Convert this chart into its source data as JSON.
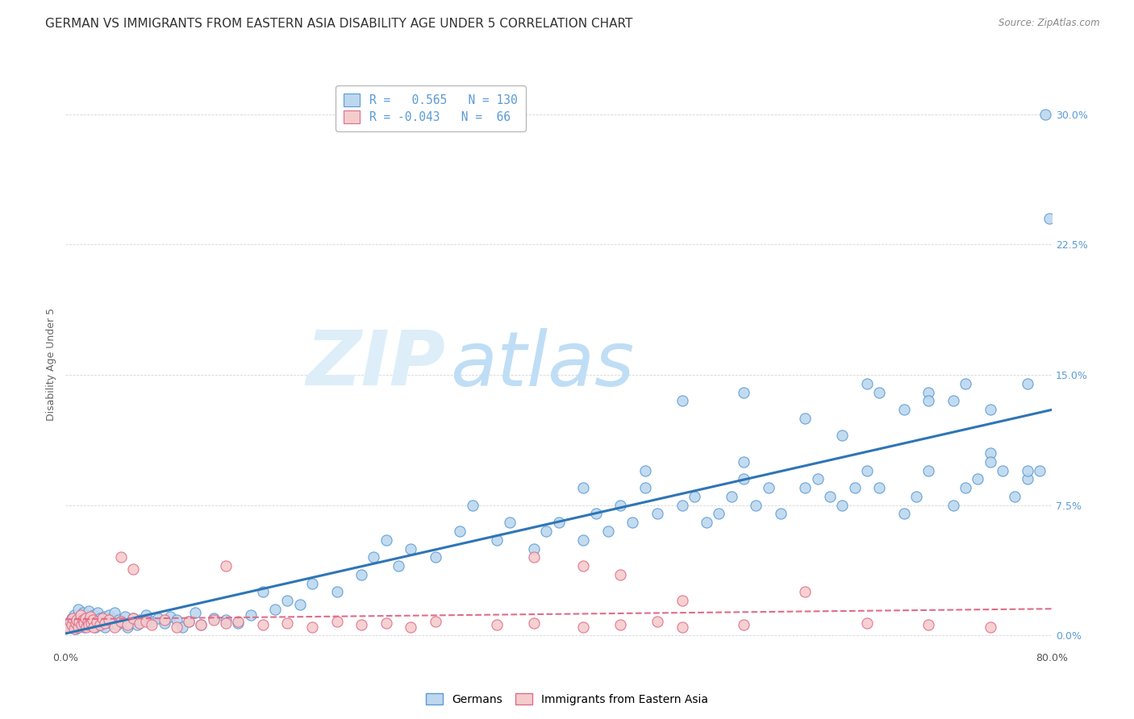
{
  "title": "GERMAN VS IMMIGRANTS FROM EASTERN ASIA DISABILITY AGE UNDER 5 CORRELATION CHART",
  "source": "Source: ZipAtlas.com",
  "ylabel": "Disability Age Under 5",
  "xmin": 0.0,
  "xmax": 80.0,
  "ymin": -0.8,
  "ymax": 32.0,
  "legend_labels": [
    "Germans",
    "Immigrants from Eastern Asia"
  ],
  "R_german": 0.565,
  "N_german": 130,
  "R_immigrants": -0.043,
  "N_immigrants": 66,
  "blue_fill": "#BDD7EE",
  "blue_edge": "#5B9BD5",
  "pink_fill": "#F4CCCC",
  "pink_edge": "#E06C8A",
  "blue_line_color": "#2E75B6",
  "pink_line_color": "#FF8FAB",
  "watermark_color": "#D6ECF8",
  "title_fontsize": 11,
  "axis_label_fontsize": 9,
  "tick_fontsize": 9,
  "blue_x": [
    0.3,
    0.5,
    0.6,
    0.7,
    0.8,
    0.9,
    1.0,
    1.1,
    1.2,
    1.3,
    1.4,
    1.5,
    1.6,
    1.7,
    1.8,
    1.9,
    2.0,
    2.1,
    2.2,
    2.3,
    2.4,
    2.5,
    2.6,
    2.7,
    2.8,
    2.9,
    3.0,
    3.1,
    3.2,
    3.4,
    3.5,
    3.7,
    3.8,
    4.0,
    4.2,
    4.3,
    4.5,
    4.8,
    5.0,
    5.2,
    5.5,
    5.8,
    6.0,
    6.5,
    7.0,
    7.5,
    8.0,
    8.5,
    9.0,
    9.5,
    10.0,
    10.5,
    11.0,
    12.0,
    13.0,
    14.0,
    15.0,
    16.0,
    17.0,
    18.0,
    19.0,
    20.0,
    22.0,
    24.0,
    25.0,
    26.0,
    27.0,
    28.0,
    30.0,
    32.0,
    33.0,
    35.0,
    36.0,
    38.0,
    39.0,
    40.0,
    42.0,
    43.0,
    44.0,
    45.0,
    46.0,
    47.0,
    48.0,
    50.0,
    51.0,
    52.0,
    53.0,
    54.0,
    55.0,
    56.0,
    57.0,
    58.0,
    60.0,
    61.0,
    62.0,
    63.0,
    64.0,
    65.0,
    66.0,
    68.0,
    69.0,
    70.0,
    72.0,
    73.0,
    74.0,
    75.0,
    76.0,
    77.0,
    78.0,
    79.0,
    50.0,
    55.0,
    60.0,
    65.0,
    68.0,
    70.0,
    72.0,
    75.0,
    78.0,
    79.5,
    79.8,
    55.0,
    63.0,
    66.0,
    70.0,
    73.0,
    75.0,
    78.0,
    42.0,
    47.0
  ],
  "blue_y": [
    0.5,
    1.0,
    0.7,
    1.2,
    0.4,
    0.8,
    1.5,
    0.6,
    1.0,
    0.9,
    1.3,
    0.5,
    0.8,
    1.1,
    0.7,
    1.4,
    0.6,
    1.0,
    0.9,
    1.2,
    0.5,
    0.8,
    1.3,
    0.7,
    1.0,
    0.6,
    0.9,
    1.1,
    0.5,
    0.8,
    1.2,
    0.7,
    1.0,
    1.3,
    0.6,
    0.9,
    0.8,
    1.1,
    0.5,
    0.7,
    1.0,
    0.6,
    0.9,
    1.2,
    0.8,
    1.0,
    0.7,
    1.1,
    0.9,
    0.5,
    0.8,
    1.3,
    0.6,
    1.0,
    0.9,
    0.7,
    1.2,
    2.5,
    1.5,
    2.0,
    1.8,
    3.0,
    2.5,
    3.5,
    4.5,
    5.5,
    4.0,
    5.0,
    4.5,
    6.0,
    7.5,
    5.5,
    6.5,
    5.0,
    6.0,
    6.5,
    5.5,
    7.0,
    6.0,
    7.5,
    6.5,
    8.5,
    7.0,
    7.5,
    8.0,
    6.5,
    7.0,
    8.0,
    9.0,
    7.5,
    8.5,
    7.0,
    8.5,
    9.0,
    8.0,
    7.5,
    8.5,
    9.5,
    8.5,
    7.0,
    8.0,
    9.5,
    7.5,
    8.5,
    9.0,
    10.5,
    9.5,
    8.0,
    9.0,
    9.5,
    13.5,
    14.0,
    12.5,
    14.5,
    13.0,
    14.0,
    13.5,
    10.0,
    9.5,
    30.0,
    24.0,
    10.0,
    11.5,
    14.0,
    13.5,
    14.5,
    13.0,
    14.5,
    8.5,
    9.5
  ],
  "pink_x": [
    0.2,
    0.4,
    0.5,
    0.6,
    0.7,
    0.8,
    0.9,
    1.0,
    1.1,
    1.2,
    1.3,
    1.4,
    1.5,
    1.6,
    1.7,
    1.8,
    1.9,
    2.0,
    2.1,
    2.2,
    2.3,
    2.5,
    2.8,
    3.0,
    3.2,
    3.5,
    4.0,
    4.5,
    5.0,
    5.5,
    6.0,
    6.5,
    7.0,
    8.0,
    9.0,
    10.0,
    11.0,
    12.0,
    13.0,
    14.0,
    16.0,
    18.0,
    20.0,
    22.0,
    24.0,
    26.0,
    28.0,
    30.0,
    35.0,
    38.0,
    42.0,
    45.0,
    48.0,
    50.0,
    55.0,
    60.0,
    65.0,
    70.0,
    75.0,
    38.0,
    42.0,
    45.0,
    50.0,
    13.0,
    4.5,
    5.5
  ],
  "pink_y": [
    0.5,
    0.8,
    0.6,
    1.0,
    0.4,
    0.7,
    0.9,
    0.5,
    0.8,
    1.2,
    0.6,
    0.9,
    0.7,
    1.0,
    0.5,
    0.8,
    0.6,
    1.1,
    0.7,
    0.9,
    0.5,
    0.8,
    0.6,
    1.0,
    0.7,
    0.9,
    0.5,
    0.8,
    0.6,
    1.0,
    0.7,
    0.8,
    0.6,
    0.9,
    0.5,
    0.8,
    0.6,
    0.9,
    0.7,
    0.8,
    0.6,
    0.7,
    0.5,
    0.8,
    0.6,
    0.7,
    0.5,
    0.8,
    0.6,
    0.7,
    0.5,
    0.6,
    0.8,
    0.5,
    0.6,
    2.5,
    0.7,
    0.6,
    0.5,
    4.5,
    4.0,
    3.5,
    2.0,
    4.0,
    4.5,
    3.8
  ]
}
